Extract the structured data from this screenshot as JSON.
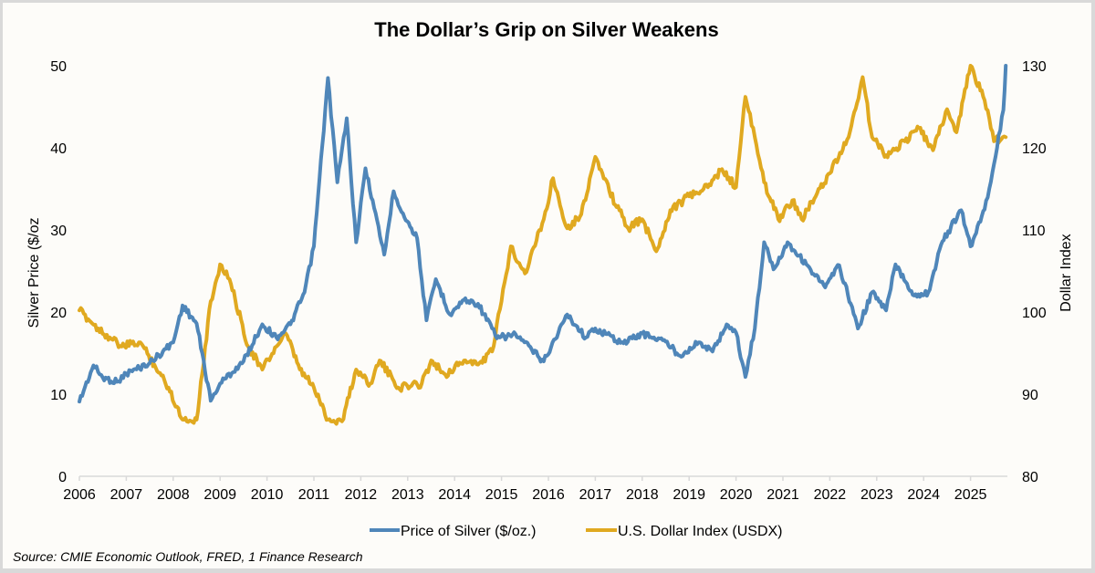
{
  "chart_data": {
    "type": "line",
    "title": "The Dollar’s Grip on Silver Weakens",
    "xlabel": "",
    "ylabel": "Silver Price ($/oz",
    "y2label": "Dollar Index",
    "x_ticks": [
      "2006",
      "2007",
      "2008",
      "2009",
      "2010",
      "2011",
      "2012",
      "2013",
      "2014",
      "2015",
      "2016",
      "2017",
      "2018",
      "2019",
      "2020",
      "2021",
      "2022",
      "2023",
      "2024",
      "2025"
    ],
    "xlim": [
      2006,
      2025.75
    ],
    "ylim": [
      0,
      50
    ],
    "y_ticks": [
      "0",
      "10",
      "20",
      "30",
      "40",
      "50"
    ],
    "y2lim": [
      80,
      130
    ],
    "y2_ticks": [
      "80",
      "90",
      "100",
      "110",
      "120",
      "130"
    ],
    "grid": false,
    "legend_position": "bottom",
    "series": [
      {
        "name": "Price of Silver ($/oz.)",
        "axis": "left",
        "color": "#4f86b9",
        "x": [
          2006.0,
          2006.3,
          2006.5,
          2006.8,
          2007.0,
          2007.5,
          2008.0,
          2008.2,
          2008.5,
          2008.8,
          2009.0,
          2009.5,
          2009.9,
          2010.2,
          2010.5,
          2010.8,
          2011.0,
          2011.3,
          2011.5,
          2011.7,
          2011.9,
          2012.1,
          2012.5,
          2012.7,
          2012.9,
          2013.2,
          2013.4,
          2013.6,
          2013.9,
          2014.2,
          2014.5,
          2014.8,
          2014.9,
          2015.3,
          2015.9,
          2016.4,
          2016.8,
          2017.0,
          2017.6,
          2018.0,
          2018.5,
          2018.8,
          2019.2,
          2019.5,
          2019.8,
          2020.0,
          2020.2,
          2020.4,
          2020.6,
          2020.8,
          2021.1,
          2021.5,
          2021.9,
          2022.2,
          2022.6,
          2022.9,
          2023.2,
          2023.4,
          2023.8,
          2024.1,
          2024.4,
          2024.8,
          2025.0,
          2025.3,
          2025.5,
          2025.7,
          2025.75
        ],
        "values": [
          9.1,
          13.5,
          12.0,
          11.5,
          12.5,
          13.8,
          16.3,
          20.8,
          18.6,
          9.2,
          11.3,
          14.0,
          18.5,
          16.9,
          18.5,
          22.4,
          28.0,
          48.5,
          35.8,
          43.6,
          28.5,
          37.5,
          27.0,
          34.7,
          32.0,
          29.0,
          19.0,
          24.0,
          19.7,
          21.5,
          21.0,
          18.0,
          16.8,
          17.3,
          14.0,
          19.7,
          16.9,
          18.0,
          16.2,
          17.4,
          16.4,
          14.7,
          16.3,
          15.2,
          18.5,
          17.5,
          12.1,
          18.0,
          28.5,
          25.2,
          28.5,
          25.8,
          23.0,
          25.7,
          18.0,
          22.4,
          20.2,
          25.8,
          22.0,
          22.4,
          28.6,
          32.4,
          28.0,
          32.5,
          38.0,
          44.6,
          50.0
        ]
      },
      {
        "name": "U.S. Dollar Index (USDX)",
        "axis": "right",
        "color": "#e0a920",
        "x": [
          2006.0,
          2006.4,
          2006.9,
          2007.3,
          2007.6,
          2007.9,
          2008.2,
          2008.5,
          2008.8,
          2009.0,
          2009.2,
          2009.6,
          2009.9,
          2010.2,
          2010.4,
          2010.7,
          2011.0,
          2011.3,
          2011.6,
          2011.9,
          2012.2,
          2012.4,
          2012.8,
          2013.3,
          2013.5,
          2013.8,
          2014.2,
          2014.5,
          2014.8,
          2015.0,
          2015.2,
          2015.5,
          2015.9,
          2016.1,
          2016.4,
          2016.7,
          2017.0,
          2017.3,
          2017.7,
          2018.0,
          2018.3,
          2018.6,
          2019.0,
          2019.4,
          2019.7,
          2020.0,
          2020.2,
          2020.4,
          2020.6,
          2020.9,
          2021.2,
          2021.4,
          2021.7,
          2022.0,
          2022.4,
          2022.7,
          2022.9,
          2023.2,
          2023.6,
          2023.9,
          2024.2,
          2024.5,
          2024.7,
          2025.0,
          2025.3,
          2025.5,
          2025.75
        ],
        "values": [
          100.2,
          98.0,
          95.8,
          96.3,
          93.6,
          90.8,
          86.9,
          86.9,
          101.3,
          105.8,
          104.0,
          95.8,
          93.0,
          95.8,
          97.4,
          93.0,
          90.8,
          86.9,
          86.7,
          93.0,
          91.3,
          94.1,
          90.8,
          91.3,
          94.1,
          92.4,
          94.1,
          93.6,
          95.2,
          101.3,
          108.0,
          104.7,
          111.3,
          116.3,
          110.2,
          111.9,
          118.9,
          114.7,
          110.2,
          111.3,
          107.4,
          112.4,
          114.1,
          115.2,
          117.4,
          115.2,
          126.2,
          121.3,
          115.8,
          111.3,
          113.6,
          111.3,
          114.1,
          116.9,
          121.3,
          128.6,
          121.3,
          119.1,
          120.8,
          122.4,
          119.7,
          124.7,
          121.9,
          130.0,
          125.8,
          120.8,
          121.3
        ]
      }
    ]
  },
  "source": "Source: CMIE Economic Outlook, FRED, 1 Finance Research"
}
